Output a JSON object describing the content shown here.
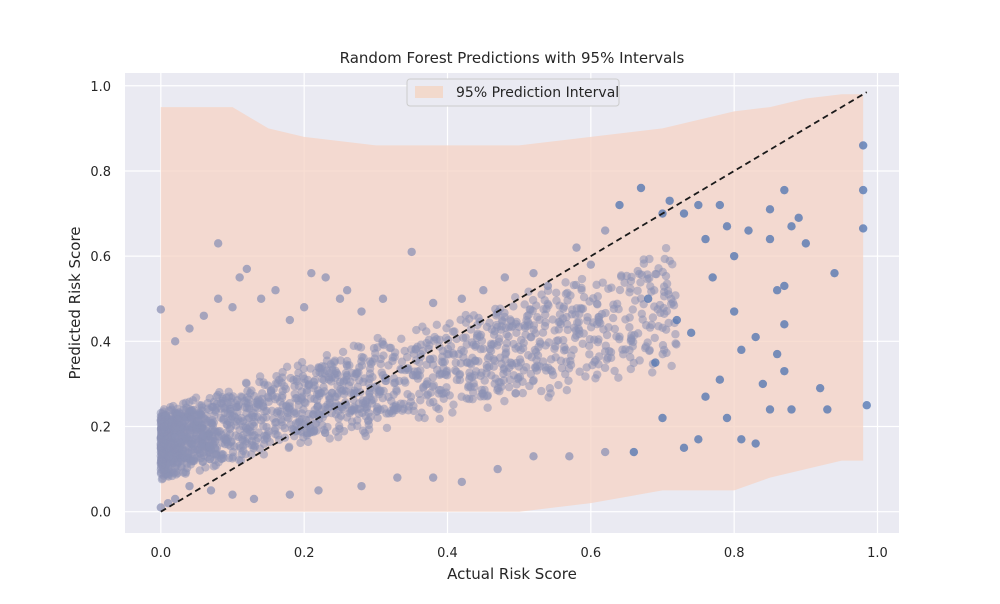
{
  "chart_data": {
    "type": "scatter",
    "title": "Random Forest Predictions with 95% Intervals",
    "xlabel": "Actual Risk Score",
    "ylabel": "Predicted Risk Score",
    "xlim": [
      -0.05,
      1.03
    ],
    "ylim": [
      -0.05,
      1.03
    ],
    "xticks": [
      0.0,
      0.2,
      0.4,
      0.6,
      0.8,
      1.0
    ],
    "yticks": [
      0.0,
      0.2,
      0.4,
      0.6,
      0.8,
      1.0
    ],
    "xtick_labels": [
      "0.0",
      "0.2",
      "0.4",
      "0.6",
      "0.8",
      "1.0"
    ],
    "ytick_labels": [
      "0.0",
      "0.2",
      "0.4",
      "0.6",
      "0.8",
      "1.0"
    ],
    "grid": true,
    "legend": {
      "position": "upper-center",
      "entries": [
        {
          "label": "95% Prediction Interval",
          "color": "#f2d9cc"
        }
      ]
    },
    "reference_line": {
      "style": "dashed",
      "color": "#1a1a1a",
      "x": [
        0.0,
        0.985
      ],
      "y": [
        0.0,
        0.985
      ]
    },
    "interval_band": {
      "color": "#f5d3c4",
      "x": [
        0.0,
        0.05,
        0.1,
        0.15,
        0.2,
        0.3,
        0.4,
        0.5,
        0.6,
        0.7,
        0.75,
        0.8,
        0.85,
        0.9,
        0.95,
        0.98
      ],
      "lower": [
        0.0,
        0.0,
        0.0,
        0.0,
        0.0,
        0.0,
        0.0,
        0.0,
        0.02,
        0.05,
        0.05,
        0.05,
        0.08,
        0.1,
        0.12,
        0.12
      ],
      "upper": [
        0.95,
        0.95,
        0.95,
        0.9,
        0.88,
        0.86,
        0.86,
        0.86,
        0.88,
        0.9,
        0.92,
        0.94,
        0.95,
        0.97,
        0.98,
        0.98
      ]
    },
    "series": [
      {
        "color": "#4c72b0",
        "marker_color": "#8c92b5",
        "points": [
          [
            0.0,
            0.475
          ],
          [
            0.02,
            0.4
          ],
          [
            0.04,
            0.43
          ],
          [
            0.06,
            0.46
          ],
          [
            0.08,
            0.5
          ],
          [
            0.08,
            0.63
          ],
          [
            0.1,
            0.48
          ],
          [
            0.11,
            0.55
          ],
          [
            0.12,
            0.57
          ],
          [
            0.14,
            0.5
          ],
          [
            0.16,
            0.52
          ],
          [
            0.18,
            0.45
          ],
          [
            0.2,
            0.48
          ],
          [
            0.21,
            0.56
          ],
          [
            0.23,
            0.55
          ],
          [
            0.25,
            0.5
          ],
          [
            0.26,
            0.52
          ],
          [
            0.28,
            0.47
          ],
          [
            0.31,
            0.5
          ],
          [
            0.35,
            0.61
          ],
          [
            0.38,
            0.49
          ],
          [
            0.42,
            0.5
          ],
          [
            0.45,
            0.52
          ],
          [
            0.48,
            0.55
          ],
          [
            0.52,
            0.56
          ],
          [
            0.54,
            0.53
          ],
          [
            0.58,
            0.62
          ],
          [
            0.6,
            0.58
          ],
          [
            0.62,
            0.66
          ],
          [
            0.64,
            0.72
          ],
          [
            0.67,
            0.76
          ],
          [
            0.7,
            0.7
          ],
          [
            0.71,
            0.73
          ],
          [
            0.73,
            0.7
          ],
          [
            0.75,
            0.72
          ],
          [
            0.76,
            0.64
          ],
          [
            0.78,
            0.72
          ],
          [
            0.79,
            0.67
          ],
          [
            0.8,
            0.6
          ],
          [
            0.82,
            0.66
          ],
          [
            0.85,
            0.71
          ],
          [
            0.85,
            0.64
          ],
          [
            0.86,
            0.52
          ],
          [
            0.87,
            0.755
          ],
          [
            0.87,
            0.53
          ],
          [
            0.87,
            0.44
          ],
          [
            0.88,
            0.67
          ],
          [
            0.89,
            0.69
          ],
          [
            0.9,
            0.63
          ],
          [
            0.92,
            0.29
          ],
          [
            0.93,
            0.24
          ],
          [
            0.94,
            0.56
          ],
          [
            0.98,
            0.665
          ],
          [
            0.98,
            0.755
          ],
          [
            0.98,
            0.86
          ],
          [
            0.985,
            0.25
          ],
          [
            0.86,
            0.37
          ],
          [
            0.87,
            0.33
          ],
          [
            0.84,
            0.3
          ],
          [
            0.88,
            0.24
          ],
          [
            0.85,
            0.24
          ],
          [
            0.79,
            0.22
          ],
          [
            0.83,
            0.16
          ],
          [
            0.81,
            0.17
          ],
          [
            0.75,
            0.17
          ],
          [
            0.73,
            0.15
          ],
          [
            0.7,
            0.22
          ],
          [
            0.66,
            0.14
          ],
          [
            0.62,
            0.14
          ],
          [
            0.57,
            0.13
          ],
          [
            0.52,
            0.13
          ],
          [
            0.47,
            0.1
          ],
          [
            0.42,
            0.07
          ],
          [
            0.38,
            0.08
          ],
          [
            0.33,
            0.08
          ],
          [
            0.28,
            0.06
          ],
          [
            0.22,
            0.05
          ],
          [
            0.18,
            0.04
          ],
          [
            0.13,
            0.03
          ],
          [
            0.1,
            0.04
          ],
          [
            0.07,
            0.05
          ],
          [
            0.04,
            0.06
          ],
          [
            0.02,
            0.03
          ],
          [
            0.01,
            0.02
          ],
          [
            0.0,
            0.01
          ],
          [
            0.68,
            0.5
          ],
          [
            0.72,
            0.45
          ],
          [
            0.74,
            0.42
          ],
          [
            0.77,
            0.55
          ],
          [
            0.8,
            0.47
          ],
          [
            0.81,
            0.38
          ],
          [
            0.83,
            0.41
          ],
          [
            0.78,
            0.31
          ],
          [
            0.76,
            0.27
          ],
          [
            0.69,
            0.35
          ]
        ]
      }
    ]
  }
}
